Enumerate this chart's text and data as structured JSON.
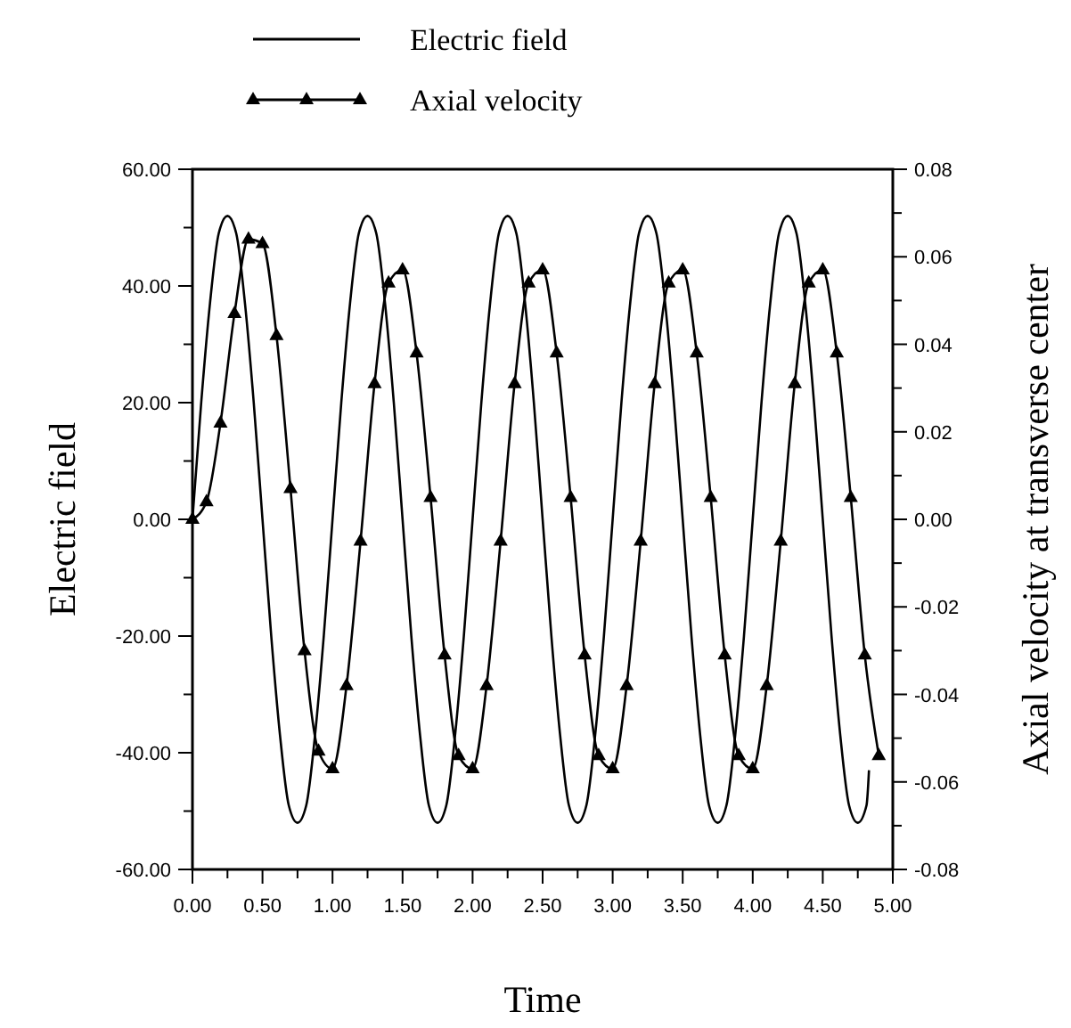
{
  "chart_data": {
    "type": "line",
    "xlabel": "Time",
    "ylabel": "Electric field",
    "y2label": "Axial velocity at transverse center",
    "legend": "top",
    "grid": false,
    "line_style": "solid",
    "xlim": [
      0,
      5
    ],
    "xticks": [
      {
        "value": 0,
        "label": "0.00"
      },
      {
        "value": 0.25,
        "label": null
      },
      {
        "value": 0.5,
        "label": "0.50"
      },
      {
        "value": 0.75,
        "label": null
      },
      {
        "value": 1,
        "label": "1.00"
      },
      {
        "value": 1.25,
        "label": null
      },
      {
        "value": 1.5,
        "label": "1.50"
      },
      {
        "value": 1.75,
        "label": null
      },
      {
        "value": 2,
        "label": "2.00"
      },
      {
        "value": 2.25,
        "label": null
      },
      {
        "value": 2.5,
        "label": "2.50"
      },
      {
        "value": 2.75,
        "label": null
      },
      {
        "value": 3,
        "label": "3.00"
      },
      {
        "value": 3.25,
        "label": null
      },
      {
        "value": 3.5,
        "label": "3.50"
      },
      {
        "value": 3.75,
        "label": null
      },
      {
        "value": 4,
        "label": "4.00"
      },
      {
        "value": 4.25,
        "label": null
      },
      {
        "value": 4.5,
        "label": "4.50"
      },
      {
        "value": 4.75,
        "label": null
      },
      {
        "value": 5,
        "label": "5.00"
      }
    ],
    "ylim": [
      -60,
      60
    ],
    "yticks": [
      {
        "value": -60,
        "label": "-60.00"
      },
      {
        "value": -50,
        "label": null
      },
      {
        "value": -40,
        "label": "-40.00"
      },
      {
        "value": -30,
        "label": null
      },
      {
        "value": -20,
        "label": "-20.00"
      },
      {
        "value": -10,
        "label": null
      },
      {
        "value": 0,
        "label": "0.00"
      },
      {
        "value": 10,
        "label": null
      },
      {
        "value": 20,
        "label": "20.00"
      },
      {
        "value": 30,
        "label": null
      },
      {
        "value": 40,
        "label": "40.00"
      },
      {
        "value": 50,
        "label": null
      },
      {
        "value": 60,
        "label": "60.00"
      }
    ],
    "y2lim": [
      -0.08,
      0.08
    ],
    "y2ticks": [
      {
        "value": -0.08,
        "label": "-0.08"
      },
      {
        "value": -0.07,
        "label": null
      },
      {
        "value": -0.06,
        "label": "-0.06"
      },
      {
        "value": -0.05,
        "label": null
      },
      {
        "value": -0.04,
        "label": "-0.04"
      },
      {
        "value": -0.03,
        "label": null
      },
      {
        "value": -0.02,
        "label": "-0.02"
      },
      {
        "value": -0.01,
        "label": null
      },
      {
        "value": 0,
        "label": "0.00"
      },
      {
        "value": 0.01,
        "label": null
      },
      {
        "value": 0.02,
        "label": "0.02"
      },
      {
        "value": 0.03,
        "label": null
      },
      {
        "value": 0.04,
        "label": "0.04"
      },
      {
        "value": 0.05,
        "label": null
      },
      {
        "value": 0.06,
        "label": "0.06"
      },
      {
        "value": 0.07,
        "label": null
      },
      {
        "value": 0.08,
        "label": "0.08"
      }
    ],
    "series": [
      {
        "name": "Electric field",
        "color": "#000000",
        "marker": "none",
        "x": [
          0,
          0.0625,
          0.125,
          0.1875,
          0.25,
          0.3125,
          0.375,
          0.4375,
          0.5,
          0.5625,
          0.625,
          0.6875,
          0.75,
          0.8125,
          0.875,
          0.9375,
          1,
          1.0625,
          1.125,
          1.1875,
          1.25,
          1.3125,
          1.375,
          1.4375,
          1.5,
          1.5625,
          1.625,
          1.6875,
          1.75,
          1.8125,
          1.875,
          1.9375,
          2,
          2.0625,
          2.125,
          2.1875,
          2.25,
          2.3125,
          2.375,
          2.4375,
          2.5,
          2.5625,
          2.625,
          2.6875,
          2.75,
          2.8125,
          2.875,
          2.9375,
          3,
          3.0625,
          3.125,
          3.1875,
          3.25,
          3.3125,
          3.375,
          3.4375,
          3.5,
          3.5625,
          3.625,
          3.6875,
          3.75,
          3.8125,
          3.875,
          3.9375,
          4,
          4.0625,
          4.125,
          4.1875,
          4.25,
          4.3125,
          4.375,
          4.4375,
          4.5,
          4.5625,
          4.625,
          4.6875,
          4.75,
          4.8125,
          4.83
        ],
        "values": [
          0,
          20,
          37,
          49,
          52,
          49,
          37,
          20,
          0,
          -20,
          -37,
          -49,
          -52,
          -49,
          -37,
          -20,
          0,
          20,
          37,
          49,
          52,
          49,
          37,
          20,
          0,
          -20,
          -37,
          -49,
          -52,
          -49,
          -37,
          -20,
          0,
          20,
          37,
          49,
          52,
          49,
          37,
          20,
          0,
          -20,
          -37,
          -49,
          -52,
          -49,
          -37,
          -20,
          0,
          20,
          37,
          49,
          52,
          49,
          37,
          20,
          0,
          -20,
          -37,
          -49,
          -52,
          -49,
          -37,
          -20,
          0,
          20,
          37,
          49,
          52,
          49,
          37,
          20,
          0,
          -20,
          -37,
          -49,
          -52,
          -49,
          -43
        ]
      },
      {
        "name": "Axial velocity",
        "color": "#000000",
        "marker": "triangle",
        "axis": "y2",
        "x": [
          0,
          0.1,
          0.2,
          0.3,
          0.4,
          0.5,
          0.6,
          0.7,
          0.8,
          0.9,
          1,
          1.1,
          1.2,
          1.3,
          1.4,
          1.5,
          1.6,
          1.7,
          1.8,
          1.9,
          2,
          2.1,
          2.2,
          2.3,
          2.4,
          2.5,
          2.6,
          2.7,
          2.8,
          2.9,
          3,
          3.1,
          3.2,
          3.3,
          3.4,
          3.5,
          3.6,
          3.7,
          3.8,
          3.9,
          4,
          4.1,
          4.2,
          4.3,
          4.4,
          4.5,
          4.6,
          4.7,
          4.8,
          4.9
        ],
        "values": [
          0,
          0.004,
          0.022,
          0.047,
          0.064,
          0.063,
          0.042,
          0.007,
          -0.03,
          -0.053,
          -0.057,
          -0.038,
          -0.005,
          0.031,
          0.054,
          0.057,
          0.038,
          0.005,
          -0.031,
          -0.054,
          -0.057,
          -0.038,
          -0.005,
          0.031,
          0.054,
          0.057,
          0.038,
          0.005,
          -0.031,
          -0.054,
          -0.057,
          -0.038,
          -0.005,
          0.031,
          0.054,
          0.057,
          0.038,
          0.005,
          -0.031,
          -0.054,
          -0.057,
          -0.038,
          -0.005,
          0.031,
          0.054,
          0.057,
          0.038,
          0.005,
          -0.031,
          -0.054
        ]
      }
    ]
  }
}
